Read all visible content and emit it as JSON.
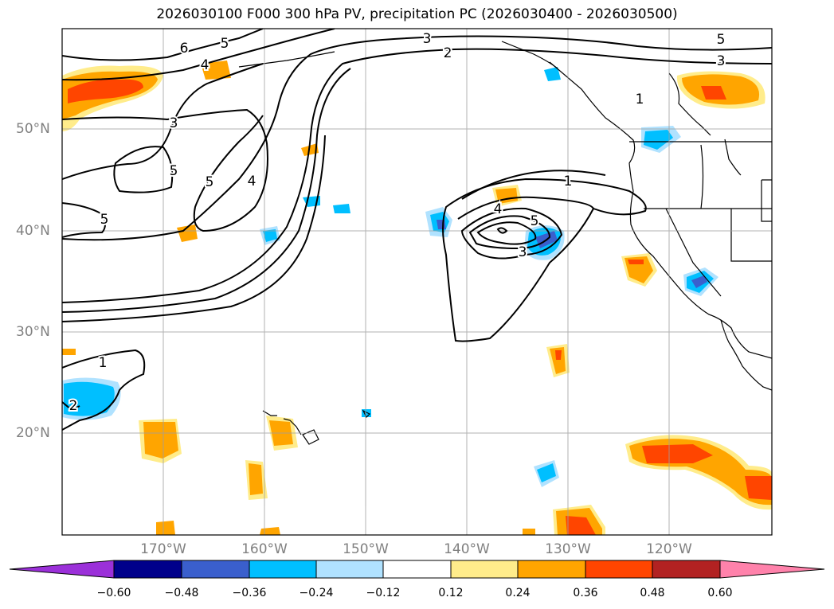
{
  "title": "2026030100 F000 300 hPa PV, precipitation PC (2026030400 - 2026030500)",
  "lat_labels": [
    "50°N",
    "40°N",
    "30°N",
    "20°N"
  ],
  "lon_labels": [
    "170°W",
    "160°W",
    "150°W",
    "140°W",
    "130°W",
    "120°W"
  ],
  "colorbar": {
    "ticks": [
      "−0.60",
      "−0.48",
      "−0.36",
      "−0.24",
      "−0.12",
      "0.12",
      "0.24",
      "0.36",
      "0.48",
      "0.60"
    ],
    "colors": [
      "#9b30d9",
      "#00008b",
      "#3a5fcd",
      "#00bfff",
      "#b0e2ff",
      "#ffffff",
      "#ffec8b",
      "#ffa500",
      "#ff4500",
      "#b22222",
      "#ff82ab"
    ]
  },
  "contour_labels": [
    "6",
    "5",
    "4",
    "3",
    "2",
    "3",
    "5",
    "3",
    "1",
    "5",
    "5",
    "4",
    "5",
    "1",
    "4",
    "5",
    "3",
    "1",
    "2"
  ]
}
